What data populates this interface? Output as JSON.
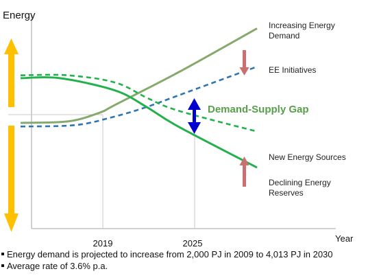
{
  "chart_data": {
    "type": "line",
    "ylabel": "Energy",
    "xlabel": "Year",
    "x_ticks": [
      "2019",
      "2025"
    ],
    "series": [
      {
        "name": "Increasing Energy Demand",
        "style": "solid",
        "color": "#86A96D",
        "points": [
          [
            0.0,
            0.2
          ],
          [
            0.3,
            0.22
          ],
          [
            0.5,
            0.34
          ],
          [
            0.6,
            0.45
          ],
          [
            1.0,
            0.9
          ],
          [
            1.5,
            1.51
          ]
        ]
      },
      {
        "name": "EE Initiatives",
        "style": "dashed",
        "color": "#2E75B6",
        "points": [
          [
            0.0,
            0.15
          ],
          [
            0.35,
            0.17
          ],
          [
            0.6,
            0.29
          ],
          [
            0.8,
            0.42
          ],
          [
            1.0,
            0.58
          ],
          [
            1.5,
            0.98
          ]
        ]
      },
      {
        "name": "New Energy Sources",
        "style": "dashed",
        "color": "#22B14C",
        "points": [
          [
            0.0,
            0.86
          ],
          [
            0.3,
            0.86
          ],
          [
            0.6,
            0.76
          ],
          [
            0.8,
            0.55
          ],
          [
            1.0,
            0.37
          ],
          [
            1.5,
            0.08
          ]
        ]
      },
      {
        "name": "Declining Energy Reserves",
        "style": "solid",
        "color": "#22B14C",
        "points": [
          [
            0.0,
            0.82
          ],
          [
            0.25,
            0.82
          ],
          [
            0.6,
            0.65
          ],
          [
            0.8,
            0.42
          ],
          [
            1.0,
            0.15
          ],
          [
            1.5,
            -0.42
          ]
        ]
      }
    ],
    "annotations": {
      "gap_label": "Demand-Supply Gap",
      "gap_color": "#5A9E4B",
      "gap_arrow_color": "#0000CC",
      "ee_arrow_color": "#C97070",
      "side_arrow_color": "#FFC000",
      "legend_labels": {
        "demand_line1": "Increasing  Energy",
        "demand_line2": "Demand",
        "ee": "EE Initiatives",
        "new_sources": "New Energy Sources",
        "reserves_line1": "Declining Energy",
        "reserves_line2": "Reserves"
      }
    },
    "grid": false
  },
  "notes": [
    "Energy demand is projected to increase from 2,000 PJ in 2009 to 4,013 PJ in 2030",
    "Average rate of 3.6% p.a."
  ]
}
